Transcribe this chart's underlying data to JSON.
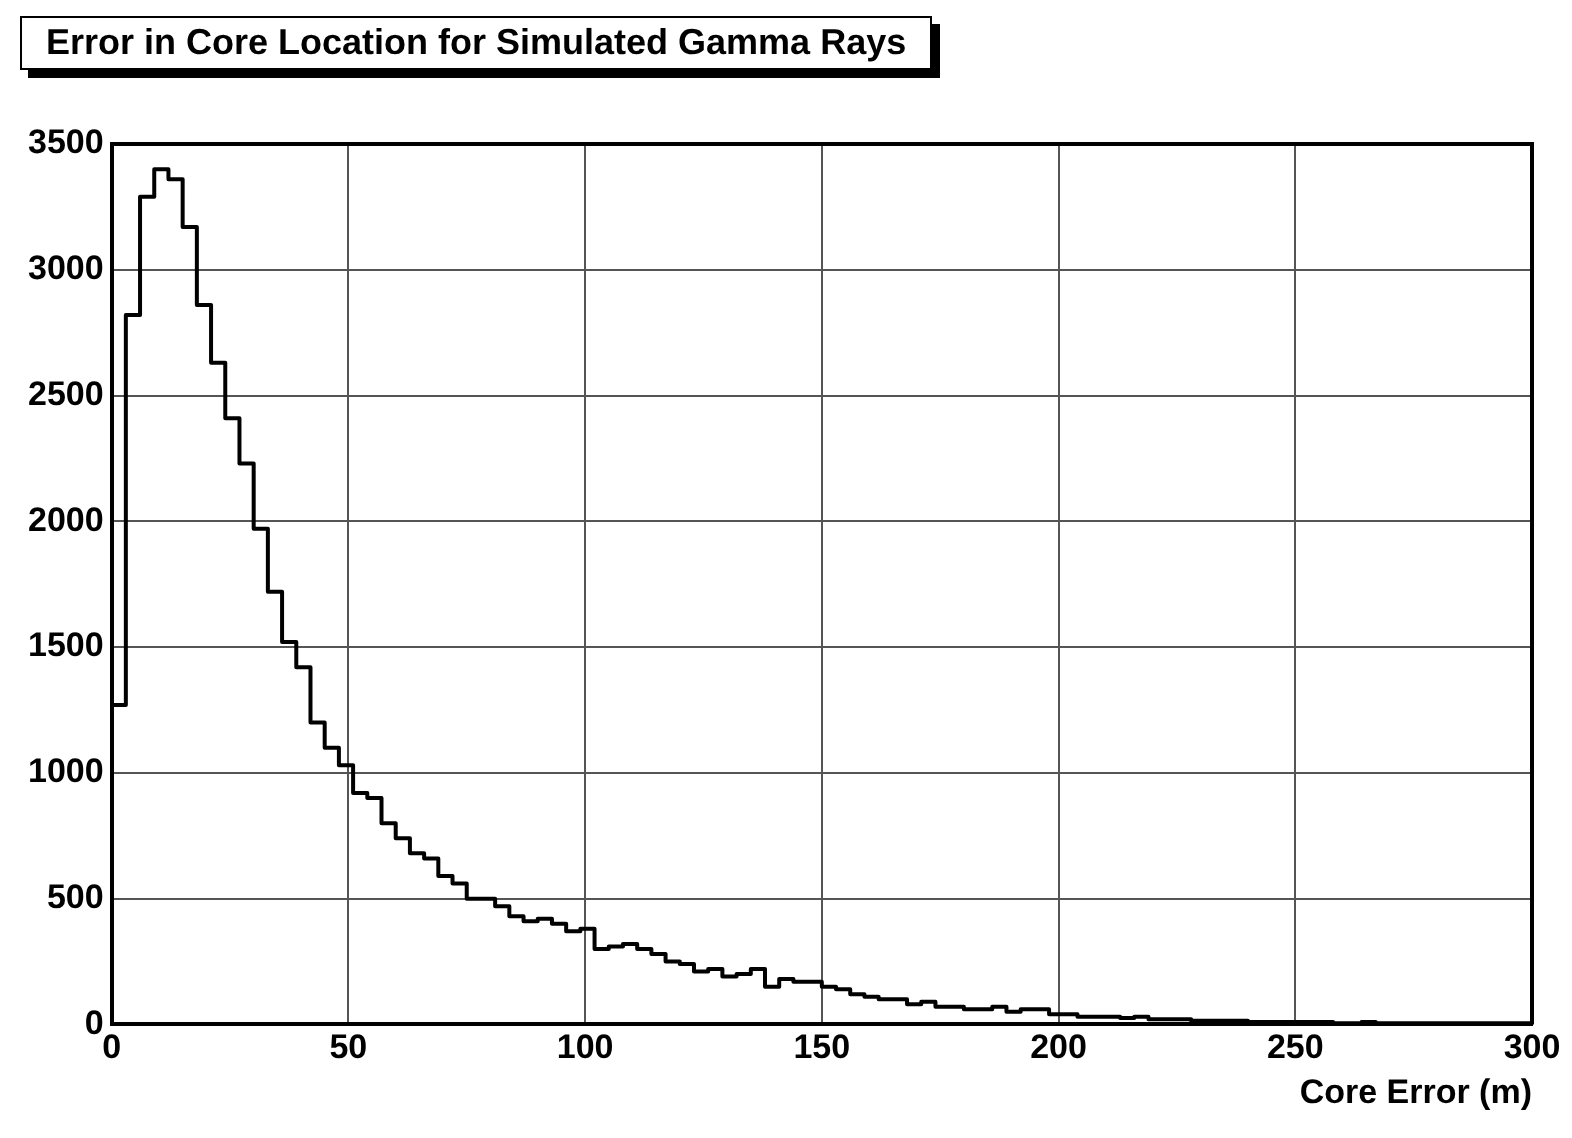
{
  "chart_data": {
    "type": "histogram",
    "title": "Error in Core Location for Simulated Gamma Rays",
    "xlabel": "Core Error (m)",
    "bins": [
      0,
      3,
      6,
      9,
      12,
      15,
      18,
      21,
      24,
      27,
      30,
      33,
      36,
      39,
      42,
      45,
      48,
      51,
      54,
      57,
      60,
      63,
      66,
      69,
      72,
      75,
      78,
      81,
      84,
      87,
      90,
      93,
      96,
      99,
      102,
      105,
      108,
      111,
      114,
      117,
      120,
      123,
      126,
      129,
      132,
      135,
      138,
      141,
      144,
      147,
      150,
      153,
      156,
      159,
      162,
      165,
      168,
      171,
      174,
      177,
      180,
      183,
      186,
      189,
      192,
      195,
      198,
      201,
      204,
      207,
      210,
      213,
      216,
      219,
      222,
      225,
      228,
      231,
      234,
      237,
      240,
      243,
      246,
      249,
      252,
      255,
      258,
      261,
      264,
      267,
      270,
      273,
      276,
      279,
      282,
      285,
      288,
      291,
      294,
      297,
      300
    ],
    "values": [
      1270,
      2820,
      3290,
      3400,
      3360,
      3170,
      2860,
      2630,
      2410,
      2230,
      1970,
      1720,
      1520,
      1420,
      1200,
      1100,
      1030,
      920,
      900,
      800,
      740,
      680,
      660,
      590,
      560,
      500,
      500,
      470,
      430,
      410,
      420,
      400,
      370,
      380,
      300,
      310,
      320,
      300,
      280,
      250,
      240,
      210,
      220,
      190,
      200,
      220,
      150,
      180,
      170,
      170,
      150,
      140,
      120,
      110,
      100,
      100,
      80,
      90,
      70,
      70,
      60,
      60,
      70,
      50,
      60,
      60,
      40,
      40,
      30,
      30,
      30,
      25,
      30,
      20,
      20,
      20,
      15,
      15,
      15,
      15,
      10,
      10,
      10,
      10,
      10,
      10,
      5,
      5,
      10,
      5,
      5,
      5,
      5,
      5,
      5,
      5,
      5,
      5,
      5,
      5
    ],
    "color": "#000000",
    "xlim": [
      0,
      300
    ],
    "ylim": [
      0,
      3500
    ],
    "xticks": [
      0,
      50,
      100,
      150,
      200,
      250,
      300
    ],
    "yticks": [
      0,
      500,
      1000,
      1500,
      2000,
      2500,
      3000,
      3500
    ],
    "grid": true
  }
}
